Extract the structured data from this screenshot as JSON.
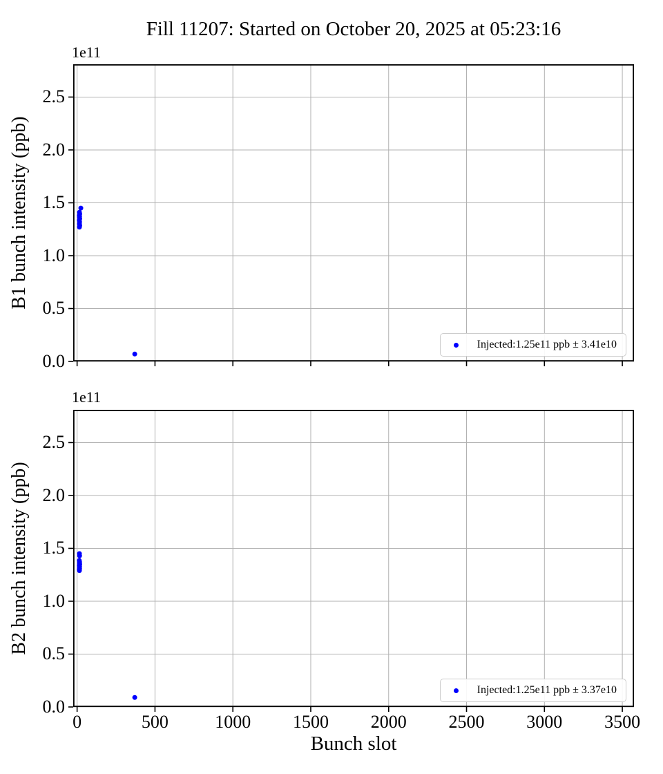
{
  "figure": {
    "title": "Fill 11207: Started on October 20, 2025 at 05:23:16",
    "xlabel": "Bunch slot",
    "colors": {
      "marker": "#0000ff",
      "grid": "#b0b0b0",
      "spine": "#000000",
      "legend_border": "#cccccc",
      "background": "#ffffff"
    }
  },
  "chart_data": [
    {
      "type": "scatter",
      "name": "B1",
      "title": "",
      "xlabel": "Bunch slot",
      "ylabel": "B1 bunch intensity (ppb)",
      "y_offset_text": "1e11",
      "grid": true,
      "legend": {
        "label": "Injected:1.25e11 ppb ± 3.41e10",
        "position": "lower right"
      },
      "xlim": [
        -25,
        3575
      ],
      "ylim_e11": [
        0,
        2.81
      ],
      "xticks": [
        0,
        500,
        1000,
        1500,
        2000,
        2500,
        3000,
        3500
      ],
      "xtick_labels": [
        "0",
        "500",
        "1000",
        "1500",
        "2000",
        "2500",
        "3000",
        "3500"
      ],
      "show_xtick_labels": false,
      "yticks_e11": [
        0.0,
        0.5,
        1.0,
        1.5,
        2.0,
        2.5
      ],
      "ytick_labels": [
        "0.0",
        "0.5",
        "1.0",
        "1.5",
        "2.0",
        "2.5"
      ],
      "points": [
        {
          "slot": 24,
          "intensity_e11": 1.45
        },
        {
          "slot": 15,
          "intensity_e11": 1.41
        },
        {
          "slot": 17,
          "intensity_e11": 1.395
        },
        {
          "slot": 14,
          "intensity_e11": 1.38
        },
        {
          "slot": 16,
          "intensity_e11": 1.37
        },
        {
          "slot": 15,
          "intensity_e11": 1.36
        },
        {
          "slot": 17,
          "intensity_e11": 1.35
        },
        {
          "slot": 14,
          "intensity_e11": 1.335
        },
        {
          "slot": 16,
          "intensity_e11": 1.32
        },
        {
          "slot": 15,
          "intensity_e11": 1.3
        },
        {
          "slot": 17,
          "intensity_e11": 1.285
        },
        {
          "slot": 15,
          "intensity_e11": 1.27
        },
        {
          "slot": 370,
          "intensity_e11": 0.07
        }
      ]
    },
    {
      "type": "scatter",
      "name": "B2",
      "title": "",
      "xlabel": "Bunch slot",
      "ylabel": "B2 bunch intensity (ppb)",
      "y_offset_text": "1e11",
      "grid": true,
      "legend": {
        "label": "Injected:1.25e11 ppb ± 3.37e10",
        "position": "lower right"
      },
      "xlim": [
        -25,
        3575
      ],
      "ylim_e11": [
        0,
        2.81
      ],
      "xticks": [
        0,
        500,
        1000,
        1500,
        2000,
        2500,
        3000,
        3500
      ],
      "xtick_labels": [
        "0",
        "500",
        "1000",
        "1500",
        "2000",
        "2500",
        "3000",
        "3500"
      ],
      "show_xtick_labels": true,
      "yticks_e11": [
        0.0,
        0.5,
        1.0,
        1.5,
        2.0,
        2.5
      ],
      "ytick_labels": [
        "0.0",
        "0.5",
        "1.0",
        "1.5",
        "2.0",
        "2.5"
      ],
      "points": [
        {
          "slot": 15,
          "intensity_e11": 1.45
        },
        {
          "slot": 16,
          "intensity_e11": 1.43
        },
        {
          "slot": 14,
          "intensity_e11": 1.385
        },
        {
          "slot": 16,
          "intensity_e11": 1.37
        },
        {
          "slot": 15,
          "intensity_e11": 1.36
        },
        {
          "slot": 17,
          "intensity_e11": 1.35
        },
        {
          "slot": 14,
          "intensity_e11": 1.34
        },
        {
          "slot": 16,
          "intensity_e11": 1.33
        },
        {
          "slot": 15,
          "intensity_e11": 1.32
        },
        {
          "slot": 16,
          "intensity_e11": 1.31
        },
        {
          "slot": 14,
          "intensity_e11": 1.3
        },
        {
          "slot": 15,
          "intensity_e11": 1.29
        },
        {
          "slot": 370,
          "intensity_e11": 0.09
        }
      ]
    }
  ]
}
